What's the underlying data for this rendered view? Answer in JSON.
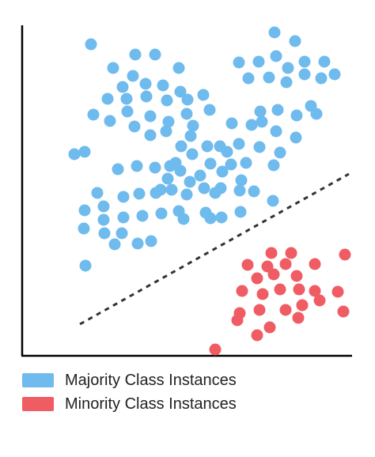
{
  "colors": {
    "majority": "#6fbbee",
    "minority": "#f05c64",
    "axis": "#000000",
    "boundary": "#333333"
  },
  "legend": {
    "majority_label": "Majority Class Instances",
    "minority_label": "Minority Class Instances"
  },
  "chart_data": {
    "type": "scatter",
    "title": "",
    "xlabel": "",
    "ylabel": "",
    "xlim": [
      0,
      420
    ],
    "ylim": [
      0,
      420
    ],
    "grid": false,
    "legend_position": "bottom-left",
    "series": [
      {
        "name": "Majority Class Instances",
        "color": "#6fbbee",
        "points": [
          [
            87,
            394
          ],
          [
            115,
            364
          ],
          [
            143,
            381
          ],
          [
            168,
            381
          ],
          [
            198,
            364
          ],
          [
            140,
            354
          ],
          [
            127,
            340
          ],
          [
            156,
            344
          ],
          [
            178,
            342
          ],
          [
            200,
            334
          ],
          [
            108,
            325
          ],
          [
            132,
            325
          ],
          [
            157,
            328
          ],
          [
            183,
            323
          ],
          [
            209,
            324
          ],
          [
            229,
            330
          ],
          [
            90,
            305
          ],
          [
            111,
            297
          ],
          [
            133,
            309
          ],
          [
            162,
            303
          ],
          [
            185,
            296
          ],
          [
            208,
            306
          ],
          [
            142,
            290
          ],
          [
            162,
            279
          ],
          [
            182,
            284
          ],
          [
            216,
            291
          ],
          [
            237,
            311
          ],
          [
            319,
            409
          ],
          [
            345,
            398
          ],
          [
            321,
            379
          ],
          [
            274,
            371
          ],
          [
            299,
            372
          ],
          [
            336,
            364
          ],
          [
            357,
            372
          ],
          [
            382,
            372
          ],
          [
            286,
            351
          ],
          [
            312,
            352
          ],
          [
            334,
            346
          ],
          [
            357,
            356
          ],
          [
            378,
            351
          ],
          [
            395,
            356
          ],
          [
            265,
            294
          ],
          [
            290,
            292
          ],
          [
            301,
            309
          ],
          [
            323,
            311
          ],
          [
            303,
            296
          ],
          [
            321,
            284
          ],
          [
            347,
            304
          ],
          [
            365,
            316
          ],
          [
            372,
            306
          ],
          [
            346,
            276
          ],
          [
            66,
            255
          ],
          [
            79,
            258
          ],
          [
            121,
            236
          ],
          [
            168,
            238
          ],
          [
            187,
            240
          ],
          [
            201,
            265
          ],
          [
            215,
            255
          ],
          [
            234,
            265
          ],
          [
            250,
            265
          ],
          [
            274,
            268
          ],
          [
            259,
            258
          ],
          [
            300,
            264
          ],
          [
            95,
            206
          ],
          [
            103,
            189
          ],
          [
            128,
            201
          ],
          [
            148,
            205
          ],
          [
            169,
            206
          ],
          [
            189,
            210
          ],
          [
            208,
            204
          ],
          [
            230,
            212
          ],
          [
            251,
            212
          ],
          [
            275,
            209
          ],
          [
            293,
            208
          ],
          [
            317,
            196
          ],
          [
            79,
            184
          ],
          [
            103,
            172
          ],
          [
            128,
            175
          ],
          [
            152,
            177
          ],
          [
            176,
            180
          ],
          [
            198,
            183
          ],
          [
            204,
            173
          ],
          [
            232,
            181
          ],
          [
            252,
            175
          ],
          [
            276,
            182
          ],
          [
            78,
            161
          ],
          [
            104,
            155
          ],
          [
            126,
            155
          ],
          [
            146,
            142
          ],
          [
            163,
            145
          ],
          [
            80,
            114
          ],
          [
            117,
            141
          ],
          [
            238,
            174
          ],
          [
            244,
            206
          ],
          [
            184,
            224
          ],
          [
            200,
            234
          ],
          [
            225,
            228
          ],
          [
            194,
            244
          ],
          [
            212,
            220
          ],
          [
            264,
            242
          ],
          [
            283,
            244
          ],
          [
            238,
            243
          ],
          [
            175,
            210
          ],
          [
            253,
            233
          ],
          [
            318,
            241
          ],
          [
            326,
            257
          ],
          [
            277,
            222
          ],
          [
            213,
            278
          ],
          [
            145,
            240
          ]
        ]
      },
      {
        "name": "Minority Class Instances",
        "color": "#f05c64",
        "points": [
          [
            315,
            130
          ],
          [
            340,
            130
          ],
          [
            408,
            128
          ],
          [
            285,
            115
          ],
          [
            310,
            113
          ],
          [
            333,
            116
          ],
          [
            370,
            116
          ],
          [
            297,
            98
          ],
          [
            318,
            103
          ],
          [
            347,
            101
          ],
          [
            278,
            82
          ],
          [
            304,
            78
          ],
          [
            326,
            84
          ],
          [
            350,
            84
          ],
          [
            370,
            82
          ],
          [
            399,
            81
          ],
          [
            275,
            54
          ],
          [
            300,
            58
          ],
          [
            333,
            58
          ],
          [
            354,
            64
          ],
          [
            376,
            70
          ],
          [
            406,
            56
          ],
          [
            272,
            45
          ],
          [
            297,
            26
          ],
          [
            313,
            36
          ],
          [
            349,
            48
          ],
          [
            244,
            8
          ]
        ]
      }
    ],
    "annotations": [
      {
        "type": "dashed-line",
        "from": [
          73,
          40
        ],
        "to": [
          413,
          230
        ]
      }
    ]
  }
}
